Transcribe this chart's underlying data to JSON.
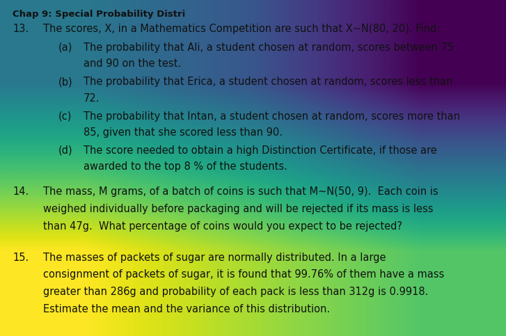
{
  "background_color": "#ddd8ce",
  "background_color2": "#f0ede8",
  "header": "Chap 9: Special Probability Distri",
  "items": [
    {
      "number": "13.",
      "intro": "The scores, X, in a Mathematics Competition are such that X~N(80, 20). Find:",
      "sub_items": [
        {
          "label": "(a)",
          "line1": "The probability that Ali, a student chosen at random, scores between 75",
          "line2": "and 90 on the test."
        },
        {
          "label": "(b)",
          "line1": "The probability that Erica, a student chosen at random, scores less than",
          "line2": "72."
        },
        {
          "label": "(c)",
          "line1": "The probability that Intan, a student chosen at random, scores more than",
          "line2": "85, given that she scored less than 90."
        },
        {
          "label": "(d)",
          "line1": "The score needed to obtain a high Distinction Certificate, if those are",
          "line2": "awarded to the top 8 % of the students."
        }
      ]
    },
    {
      "number": "14.",
      "lines": [
        "The mass, M grams, of a batch of coins is such that M~N(50, 9).  Each coin is",
        "weighed individually before packaging and will be rejected if its mass is less",
        "than 47g.  What percentage of coins would you expect to be rejected?"
      ]
    },
    {
      "number": "15.",
      "lines": [
        "The masses of packets of sugar are normally distributed. In a large",
        "consignment of packets of sugar, it is found that 99.76% of them have a mass",
        "greater than 286g and probability of each pack is less than 312g is 0.9918.",
        "Estimate the mean and the variance of this distribution."
      ]
    }
  ],
  "text_color": "#111111",
  "header_fontsize": 9.5,
  "main_fontsize": 10.5,
  "number_indent": 0.025,
  "text_indent": 0.085,
  "sub_label_indent": 0.115,
  "sub_text_indent": 0.165
}
